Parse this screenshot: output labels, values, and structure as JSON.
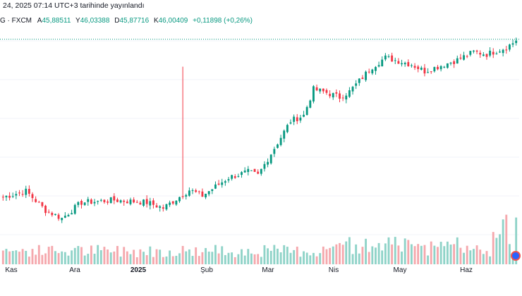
{
  "header": {
    "published_text": "24, 2025 07:14 UTC+3 tarihinde yayınlandı"
  },
  "ohlc": {
    "symbol_text": "G · FXCM",
    "open_label": "A",
    "open": "45,88511",
    "high_label": "Y",
    "high": "46,03388",
    "low_label": "D",
    "low": "45,87716",
    "close_label": "K",
    "close": "46,00409",
    "change": "+0,11898 (+0,26%)"
  },
  "colors": {
    "up": "#089981",
    "down": "#f23645",
    "vol_up": "#8fd3c8",
    "vol_down": "#f5a8ad",
    "grid": "#f0f3fa",
    "last_price_line": "#089981",
    "live_indicator": "#2962ff"
  },
  "chart_data": {
    "type": "candlestick",
    "x_axis_labels": [
      "Kas",
      "Ara",
      "2025",
      "Şub",
      "Mar",
      "Nis",
      "May",
      "Haz"
    ],
    "segments": [
      {
        "days": 8,
        "end": 32.6
      },
      {
        "days": 6,
        "end": 30.9
      },
      {
        "days": 5,
        "end": 30.2
      },
      {
        "days": 6,
        "end": 31.6
      },
      {
        "days": 10,
        "end": 31.8
      },
      {
        "days": 10,
        "end": 31.6
      },
      {
        "days": 5,
        "end": 31.1
      },
      {
        "days": 8,
        "end": 32.7
      },
      {
        "days": 4,
        "end": 32.2
      },
      {
        "days": 8,
        "end": 33.8
      },
      {
        "days": 6,
        "end": 34.3
      },
      {
        "days": 3,
        "end": 34.0
      },
      {
        "days": 10,
        "end": 38.8
      },
      {
        "days": 4,
        "end": 39.3
      },
      {
        "days": 3,
        "end": 41.6
      },
      {
        "days": 4,
        "end": 41.3
      },
      {
        "days": 4,
        "end": 40.9
      },
      {
        "days": 3,
        "end": 41.4
      },
      {
        "days": 7,
        "end": 43.6
      },
      {
        "days": 4,
        "end": 44.4
      },
      {
        "days": 8,
        "end": 43.8
      },
      {
        "days": 4,
        "end": 43.2
      },
      {
        "days": 10,
        "end": 44.2
      },
      {
        "days": 5,
        "end": 44.9
      },
      {
        "days": 4,
        "end": 44.7
      },
      {
        "days": 6,
        "end": 45.3
      },
      {
        "days": 3,
        "end": 45.9
      }
    ],
    "spike_high_index": 55,
    "spike_high_value": 43.6,
    "y_range": [
      28,
      47
    ],
    "last_price": 45.9
  }
}
